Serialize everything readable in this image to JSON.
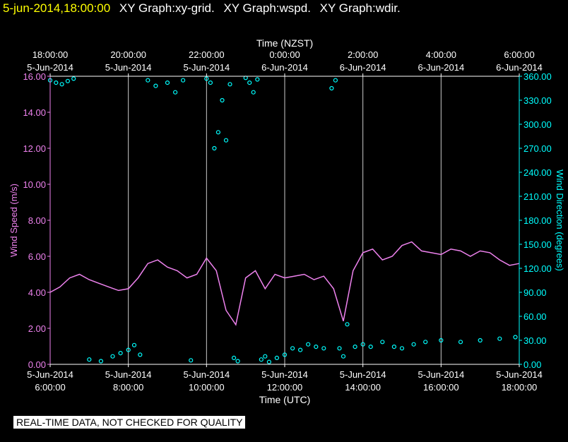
{
  "header": {
    "timestamp": "5-jun-2014,18:00:00",
    "graphs": [
      "XY Graph:xy-grid.",
      "XY Graph:wspd.",
      "XY Graph:wdir."
    ]
  },
  "footer": {
    "quality_note": "REAL-TIME DATA, NOT CHECKED FOR QUALITY"
  },
  "colors": {
    "background": "#000000",
    "speed": "#ee82ee",
    "direction": "#00ffff",
    "grid": "#ffffff",
    "timestamp": "#ffff00"
  },
  "chart_data": {
    "type": "line",
    "top_axis": {
      "label": "Time (NZST)",
      "ticks": [
        {
          "time": "18:00:00",
          "date": "5-Jun-2014"
        },
        {
          "time": "20:00:00",
          "date": "5-Jun-2014"
        },
        {
          "time": "22:00:00",
          "date": "5-Jun-2014"
        },
        {
          "time": "0:00:00",
          "date": "6-Jun-2014"
        },
        {
          "time": "2:00:00",
          "date": "6-Jun-2014"
        },
        {
          "time": "4:00:00",
          "date": "6-Jun-2014"
        },
        {
          "time": "6:00:00",
          "date": "6-Jun-2014"
        }
      ]
    },
    "bottom_axis": {
      "label": "Time (UTC)",
      "ticks": [
        {
          "time": "6:00:00",
          "date": "5-Jun-2014"
        },
        {
          "time": "8:00:00",
          "date": "5-Jun-2014"
        },
        {
          "time": "10:00:00",
          "date": "5-Jun-2014"
        },
        {
          "time": "12:00:00",
          "date": "5-Jun-2014"
        },
        {
          "time": "14:00:00",
          "date": "5-Jun-2014"
        },
        {
          "time": "16:00:00",
          "date": "5-Jun-2014"
        },
        {
          "time": "18:00:00",
          "date": "5-Jun-2014"
        }
      ],
      "xlim_utc_hours": [
        6,
        18
      ]
    },
    "left_axis": {
      "label": "Wind Speed (m/s)",
      "ylim": [
        0,
        16
      ],
      "ticks": [
        "0.00",
        "2.00",
        "4.00",
        "6.00",
        "8.00",
        "10.00",
        "12.00",
        "14.00",
        "16.00"
      ]
    },
    "right_axis": {
      "label": "Wind Direction (degrees)",
      "ylim": [
        0,
        360
      ],
      "ticks": [
        "0.00",
        "30.00",
        "60.00",
        "90.00",
        "120.00",
        "150.00",
        "180.00",
        "210.00",
        "240.00",
        "270.00",
        "300.00",
        "330.00",
        "360.00"
      ]
    },
    "grid": "vertical lines at each 2-hour tick",
    "series": [
      {
        "name": "Wind Speed (m/s)",
        "style": "line",
        "x_utc_hours": [
          6.0,
          6.25,
          6.5,
          6.75,
          7.0,
          7.25,
          7.5,
          7.75,
          8.0,
          8.25,
          8.5,
          8.75,
          9.0,
          9.25,
          9.5,
          9.75,
          10.0,
          10.25,
          10.5,
          10.75,
          11.0,
          11.25,
          11.5,
          11.75,
          12.0,
          12.25,
          12.5,
          12.75,
          13.0,
          13.25,
          13.5,
          13.75,
          14.0,
          14.25,
          14.5,
          14.75,
          15.0,
          15.25,
          15.5,
          15.75,
          16.0,
          16.25,
          16.5,
          16.75,
          17.0,
          17.25,
          17.5,
          17.75,
          18.0
        ],
        "values": [
          4.0,
          4.3,
          4.8,
          5.0,
          4.7,
          4.5,
          4.3,
          4.1,
          4.2,
          4.8,
          5.6,
          5.8,
          5.4,
          5.2,
          4.8,
          5.0,
          5.9,
          5.2,
          3.0,
          2.2,
          4.8,
          5.2,
          4.2,
          5.0,
          4.8,
          4.9,
          5.0,
          4.7,
          4.9,
          4.2,
          2.4,
          5.2,
          6.2,
          6.4,
          5.8,
          6.0,
          6.6,
          6.8,
          6.3,
          6.2,
          6.1,
          6.4,
          6.3,
          6.0,
          6.3,
          6.2,
          5.8,
          5.5,
          5.6
        ]
      },
      {
        "name": "Wind Direction (degrees)",
        "style": "scatter",
        "x_utc_hours": [
          6.0,
          6.15,
          6.3,
          6.45,
          6.6,
          7.0,
          7.3,
          7.6,
          7.8,
          8.0,
          8.15,
          8.3,
          8.5,
          8.7,
          9.0,
          9.2,
          9.4,
          9.6,
          10.0,
          10.1,
          10.2,
          10.3,
          10.4,
          10.5,
          10.6,
          10.7,
          10.8,
          11.0,
          11.1,
          11.2,
          11.3,
          11.4,
          11.5,
          11.6,
          11.8,
          12.0,
          12.2,
          12.4,
          12.6,
          12.8,
          13.0,
          13.2,
          13.3,
          13.4,
          13.5,
          13.6,
          13.8,
          14.0,
          14.2,
          14.5,
          14.8,
          15.0,
          15.3,
          15.6,
          16.0,
          16.5,
          17.0,
          17.5,
          17.9
        ],
        "values": [
          355,
          352,
          350,
          354,
          357,
          6,
          4,
          10,
          14,
          18,
          24,
          12,
          355,
          348,
          352,
          340,
          355,
          5,
          357,
          352,
          270,
          290,
          330,
          280,
          350,
          8,
          4,
          358,
          352,
          340,
          356,
          6,
          10,
          3,
          8,
          12,
          20,
          18,
          25,
          22,
          20,
          345,
          355,
          20,
          10,
          50,
          22,
          25,
          22,
          28,
          22,
          20,
          25,
          28,
          30,
          28,
          30,
          32,
          34
        ]
      }
    ]
  }
}
